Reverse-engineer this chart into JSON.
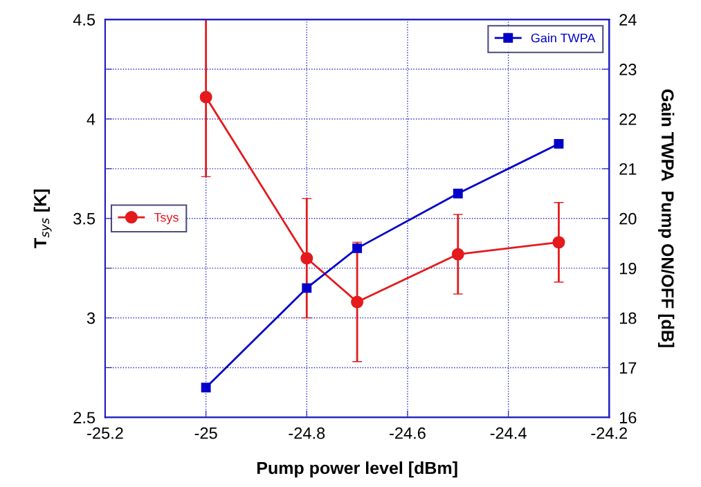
{
  "chart_data": {
    "type": "line",
    "xlabel": "Pump power level [dBm]",
    "ylabel": "T$_{sys}$ [K]",
    "y2label": "Gain TWPA  Pump ON/OFF [dB]",
    "series": [
      {
        "name": "Tsys",
        "color": "#e41a1c",
        "marker": "circle",
        "axis": "y",
        "x": [
          -25,
          -24.8,
          -24.7,
          -24.5,
          -24.3
        ],
        "values": [
          4.11,
          3.3,
          3.08,
          3.32,
          3.38
        ],
        "errors": [
          [
            3.71,
            4.5
          ],
          0.3,
          0.3,
          0.2,
          0.2
        ]
      },
      {
        "name": "Gain TWPA",
        "color": "#0000c8",
        "marker": "square",
        "axis": "y2",
        "x": [
          -25,
          -24.8,
          -24.7,
          -24.5,
          -24.3
        ],
        "values": [
          16.6,
          18.6,
          19.4,
          20.5,
          21.5
        ]
      }
    ],
    "xlim": [
      -25.2,
      -24.2
    ],
    "xticks": [
      -25.2,
      -25,
      -24.8,
      -24.6,
      -24.4,
      -24.2
    ],
    "ylim": [
      2.5,
      4.5
    ],
    "yticks": [
      2.5,
      {
        "value": 2.75,
        "label": null
      },
      3,
      {
        "value": 3.25,
        "label": null
      },
      3.5,
      {
        "value": 3.75,
        "label": null
      },
      4,
      {
        "value": 4.25,
        "label": null
      },
      4.5
    ],
    "y2lim": [
      16,
      24
    ],
    "y2ticks": [
      16,
      17,
      18,
      19,
      20,
      21,
      22,
      23,
      24
    ],
    "grid": true,
    "legend": "center left"
  }
}
